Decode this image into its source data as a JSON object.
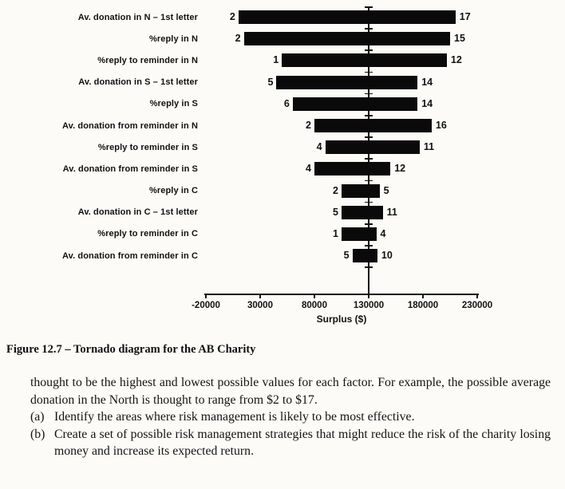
{
  "page": {
    "caption": "Figure 12.7 – Tornado diagram for the AB Charity",
    "body": {
      "paragraph": "thought to be the highest and lowest possible values for each factor. For example, the possible average donation in the North is thought to range from $2 to $17.",
      "item_a_label": "(a)",
      "item_a": "Identify the areas where risk management is likely to be most effective.",
      "item_b_label": "(b)",
      "item_b": "Create a set of possible risk management strategies that might reduce the risk of the charity losing money and increase its expected return."
    }
  },
  "chart_data": {
    "type": "bar",
    "subtype": "tornado",
    "xlabel": "Surplus ($)",
    "xlim": [
      -20000,
      230000
    ],
    "xticks": [
      -20000,
      30000,
      80000,
      130000,
      180000,
      230000
    ],
    "xtick_labels": [
      "-20000",
      "30000",
      "80000",
      "130000",
      "180000",
      "230000"
    ],
    "base_value": 130000,
    "grid": false,
    "bar_color": "#0a0a0a",
    "rows": [
      {
        "label": "Av. donation in N – 1st letter",
        "low_label": "2",
        "high_label": "17",
        "bar_low": 10000,
        "bar_high": 210000
      },
      {
        "label": "%reply in N",
        "low_label": "2",
        "high_label": "15",
        "bar_low": 15000,
        "bar_high": 205000
      },
      {
        "label": "%reply to reminder in N",
        "low_label": "1",
        "high_label": "12",
        "bar_low": 50000,
        "bar_high": 202000
      },
      {
        "label": "Av. donation in S – 1st letter",
        "low_label": "5",
        "high_label": "14",
        "bar_low": 45000,
        "bar_high": 175000
      },
      {
        "label": "%reply in S",
        "low_label": "6",
        "high_label": "14",
        "bar_low": 60000,
        "bar_high": 175000
      },
      {
        "label": "Av. donation from reminder in N",
        "low_label": "2",
        "high_label": "16",
        "bar_low": 80000,
        "bar_high": 188000
      },
      {
        "label": "%reply to reminder in S",
        "low_label": "4",
        "high_label": "11",
        "bar_low": 90000,
        "bar_high": 177000
      },
      {
        "label": "Av. donation from reminder in S",
        "low_label": "4",
        "high_label": "12",
        "bar_low": 80000,
        "bar_high": 150000
      },
      {
        "label": "%reply in C",
        "low_label": "2",
        "high_label": "5",
        "bar_low": 105000,
        "bar_high": 140000
      },
      {
        "label": "Av. donation in C – 1st letter",
        "low_label": "5",
        "high_label": "11",
        "bar_low": 105000,
        "bar_high": 143000
      },
      {
        "label": "%reply to reminder in C",
        "low_label": "1",
        "high_label": "4",
        "bar_low": 105000,
        "bar_high": 137000
      },
      {
        "label": "Av. donation from reminder in C",
        "low_label": "5",
        "high_label": "10",
        "bar_low": 115000,
        "bar_high": 138000
      }
    ]
  }
}
